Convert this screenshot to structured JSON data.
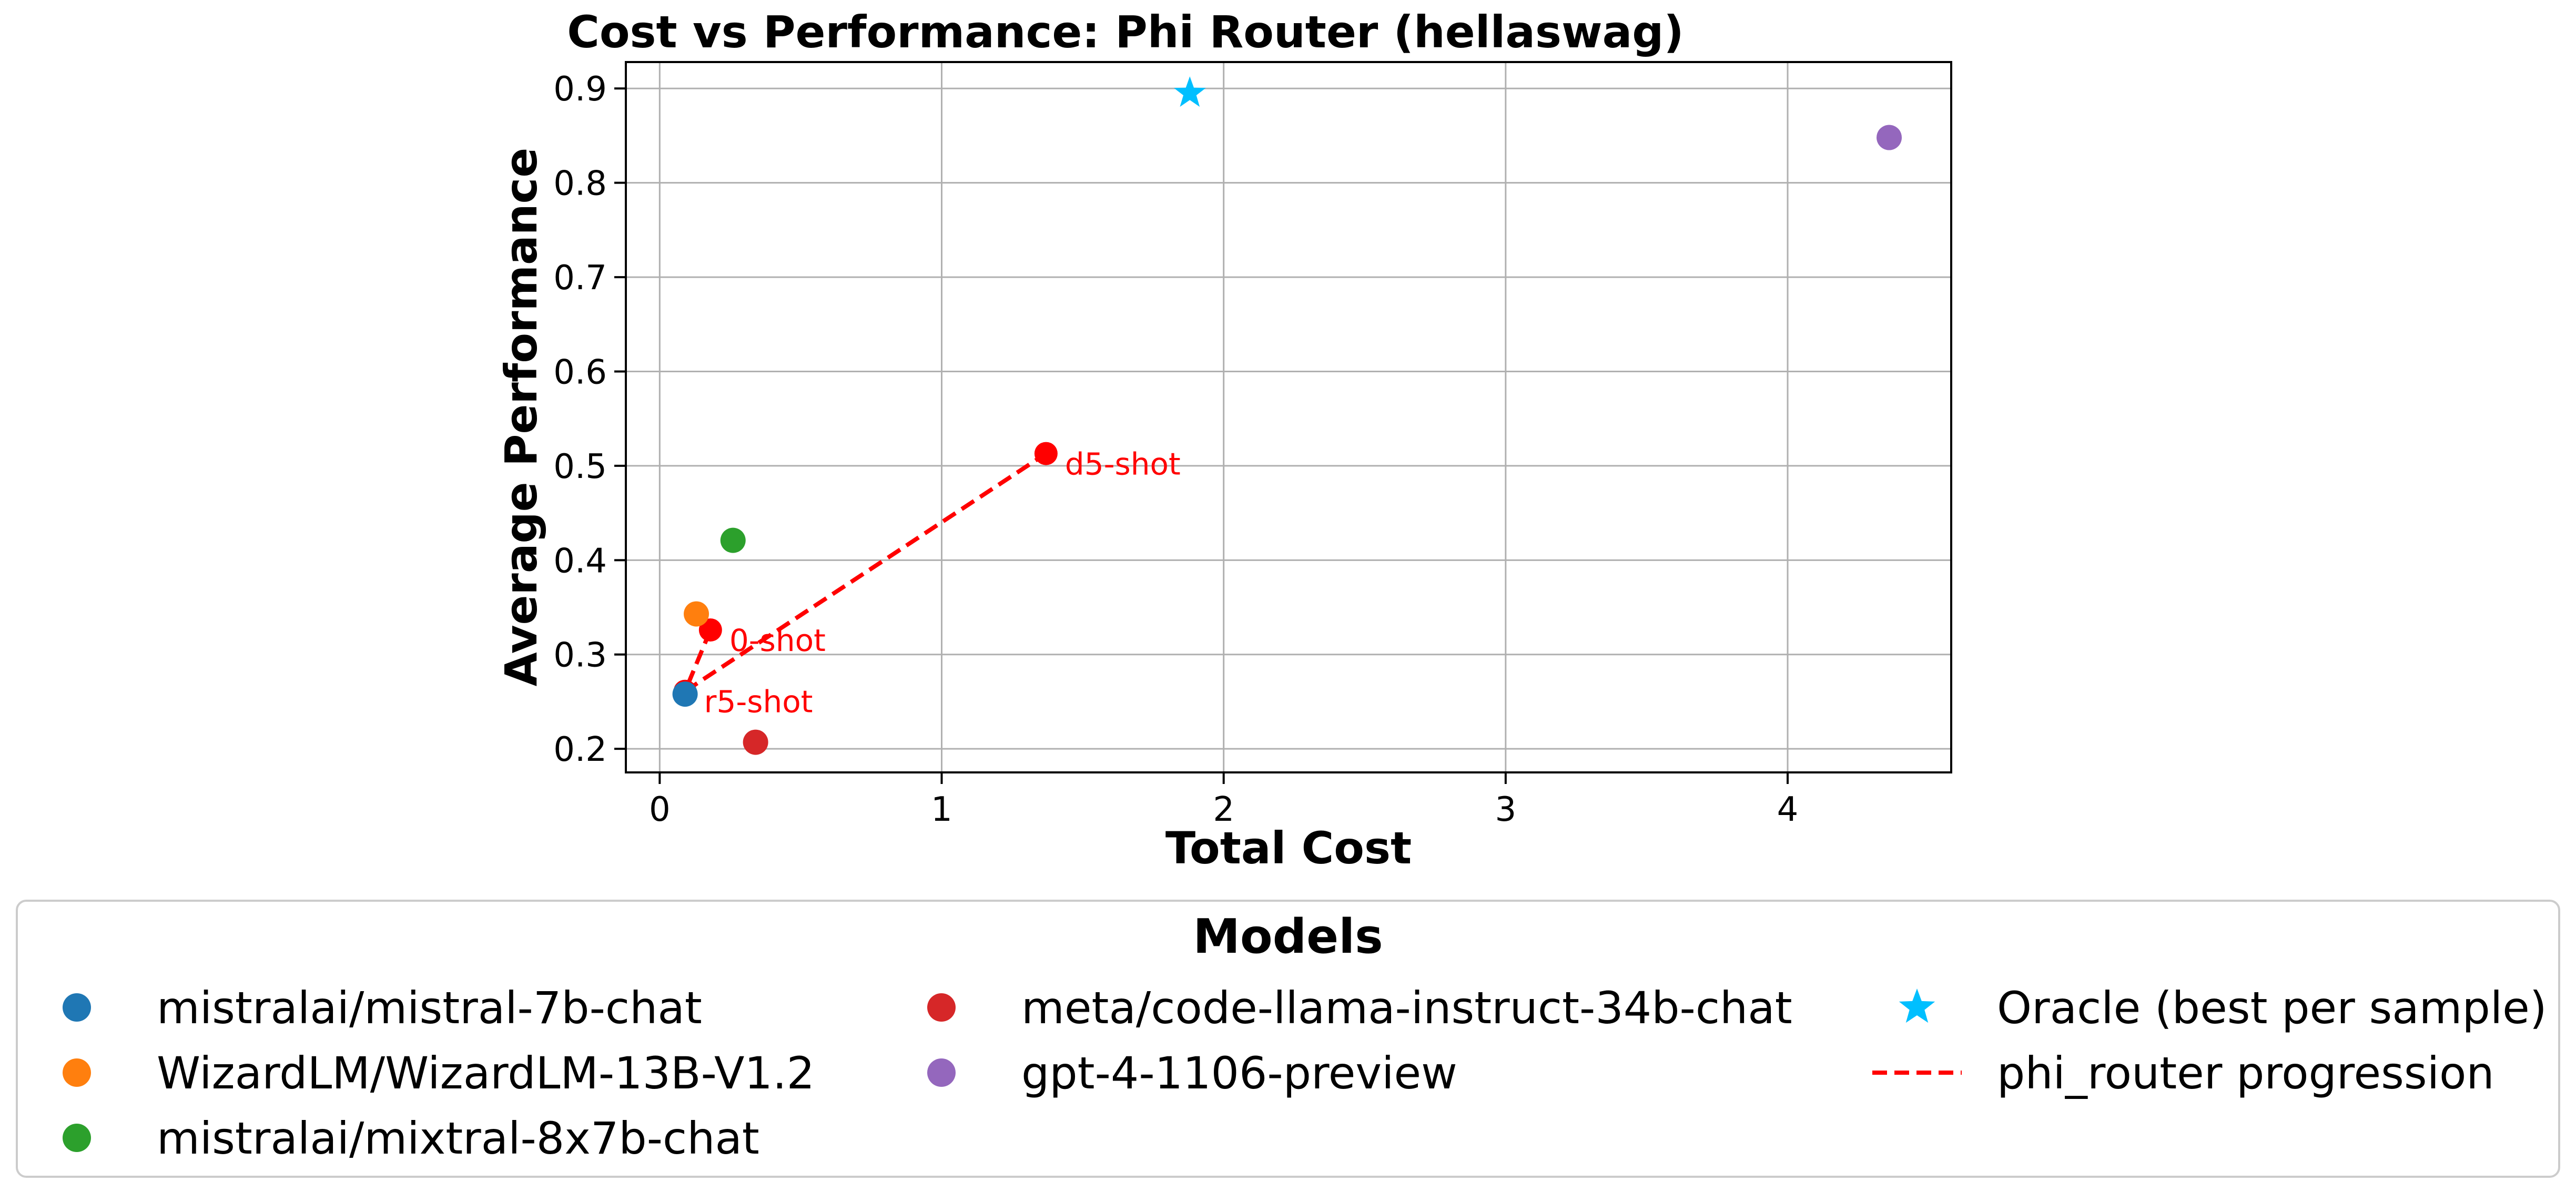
{
  "chart_data": {
    "type": "scatter",
    "title": "Cost vs Performance: Phi Router (hellaswag)",
    "xlabel": "Total Cost",
    "ylabel": "Average Performance",
    "xlim": [
      -0.12,
      4.58
    ],
    "ylim": [
      0.175,
      0.928
    ],
    "xticks": [
      0,
      1,
      2,
      3,
      4
    ],
    "yticks": [
      0.2,
      0.3,
      0.4,
      0.5,
      0.6,
      0.7,
      0.8,
      0.9
    ],
    "grid": true,
    "legend": {
      "title": "Models",
      "placement": "bottom"
    },
    "series": [
      {
        "name": "mistralai/mistral-7b-chat",
        "color": "#1f77b4",
        "marker": "circle",
        "x": [
          0.09
        ],
        "y": [
          0.258
        ]
      },
      {
        "name": "WizardLM/WizardLM-13B-V1.2",
        "color": "#ff7f0e",
        "marker": "circle",
        "x": [
          0.13
        ],
        "y": [
          0.343
        ]
      },
      {
        "name": "mistralai/mixtral-8x7b-chat",
        "color": "#2ca02c",
        "marker": "circle",
        "x": [
          0.26
        ],
        "y": [
          0.421
        ]
      },
      {
        "name": "meta/code-llama-instruct-34b-chat",
        "color": "#d62728",
        "marker": "circle",
        "x": [
          0.34
        ],
        "y": [
          0.207
        ]
      },
      {
        "name": "gpt-4-1106-preview",
        "color": "#9467bd",
        "marker": "circle",
        "x": [
          4.36
        ],
        "y": [
          0.848
        ]
      },
      {
        "name": "Oracle (best per sample)",
        "color": "#00bfff",
        "marker": "star",
        "x": [
          1.88
        ],
        "y": [
          0.895
        ]
      },
      {
        "name": "phi_router progression",
        "color": "#ff0000",
        "marker": "line-dashed",
        "points": [
          {
            "label": "0-shot",
            "x": 0.18,
            "y": 0.326
          },
          {
            "label": "r5-shot",
            "x": 0.09,
            "y": 0.261
          },
          {
            "label": "d5-shot",
            "x": 1.37,
            "y": 0.513
          }
        ]
      }
    ]
  }
}
